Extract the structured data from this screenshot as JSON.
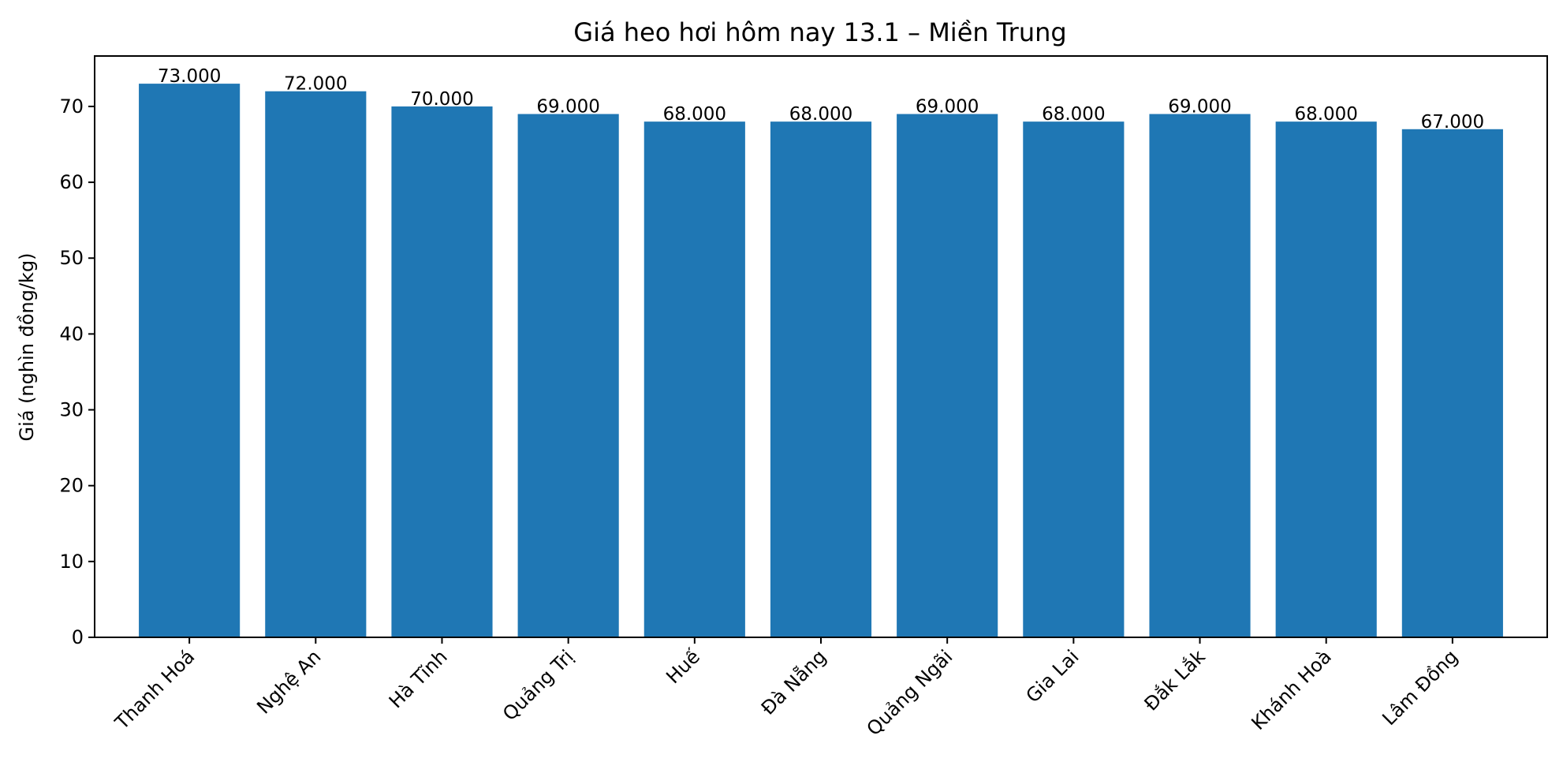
{
  "chart_data": {
    "type": "bar",
    "title": "Giá heo hơi hôm nay 13.1 – Miền Trung",
    "xlabel": "",
    "ylabel": "Giá (nghìn đồng/kg)",
    "categories": [
      "Thanh Hoá",
      "Nghệ An",
      "Hà Tĩnh",
      "Quảng Trị",
      "Huế",
      "Đà Nẵng",
      "Quảng Ngãi",
      "Gia Lai",
      "Đắk Lắk",
      "Khánh Hoà",
      "Lâm Đồng"
    ],
    "values": [
      73,
      72,
      70,
      69,
      68,
      68,
      69,
      68,
      69,
      68,
      67
    ],
    "data_labels": [
      "73.000",
      "72.000",
      "70.000",
      "69.000",
      "68.000",
      "68.000",
      "69.000",
      "68.000",
      "69.000",
      "68.000",
      "67.000"
    ],
    "ylim": [
      0,
      76.65
    ],
    "yticks": [
      0,
      10,
      20,
      30,
      40,
      50,
      60,
      70
    ],
    "bar_color": "#1f77b4",
    "grid": false,
    "legend": "none"
  }
}
